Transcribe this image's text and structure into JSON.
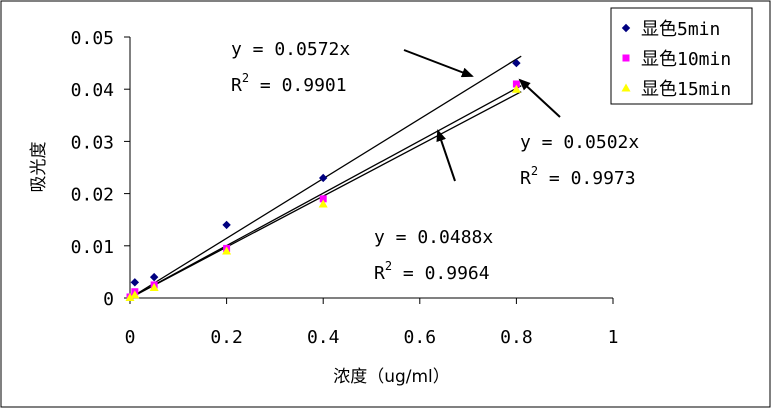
{
  "chart_data": {
    "type": "scatter",
    "xlabel": "浓度（ug/ml）",
    "ylabel": "吸光度",
    "xlim": [
      0,
      1
    ],
    "ylim": [
      0,
      0.05
    ],
    "xticks": [
      "0",
      "0.2",
      "0.4",
      "0.6",
      "0.8",
      "1"
    ],
    "yticks": [
      "0",
      "0.01",
      "0.02",
      "0.03",
      "0.04",
      "0.05"
    ],
    "legend_position": "top-right",
    "series": [
      {
        "name": "显色5min",
        "color": "#000080",
        "marker": "diamond",
        "points": [
          [
            0.01,
            0.003
          ],
          [
            0.05,
            0.004
          ],
          [
            0.2,
            0.014
          ],
          [
            0.4,
            0.023
          ],
          [
            0.8,
            0.045
          ]
        ],
        "trendline_slope": 0.0572,
        "equation": "y = 0.0572x",
        "r2_label": "R",
        "r2_value": " = 0.9901"
      },
      {
        "name": "显色10min",
        "color": "#ff00ff",
        "marker": "square",
        "points": [
          [
            0,
            0.0002
          ],
          [
            0.01,
            0.0012
          ],
          [
            0.05,
            0.0025
          ],
          [
            0.2,
            0.0095
          ],
          [
            0.4,
            0.019
          ],
          [
            0.8,
            0.041
          ]
        ],
        "trendline_slope": 0.0502,
        "equation": "y = 0.0502x",
        "r2_label": "R",
        "r2_value": " = 0.9973"
      },
      {
        "name": "显色15min",
        "color": "#ffff00",
        "marker": "triangle",
        "points": [
          [
            0,
            0.0001
          ],
          [
            0.01,
            0.0006
          ],
          [
            0.05,
            0.002
          ],
          [
            0.2,
            0.009
          ],
          [
            0.4,
            0.018
          ],
          [
            0.8,
            0.04
          ]
        ],
        "trendline_slope": 0.0488,
        "equation": "y = 0.0488x",
        "r2_label": "R",
        "r2_value": " = 0.9964"
      }
    ]
  }
}
